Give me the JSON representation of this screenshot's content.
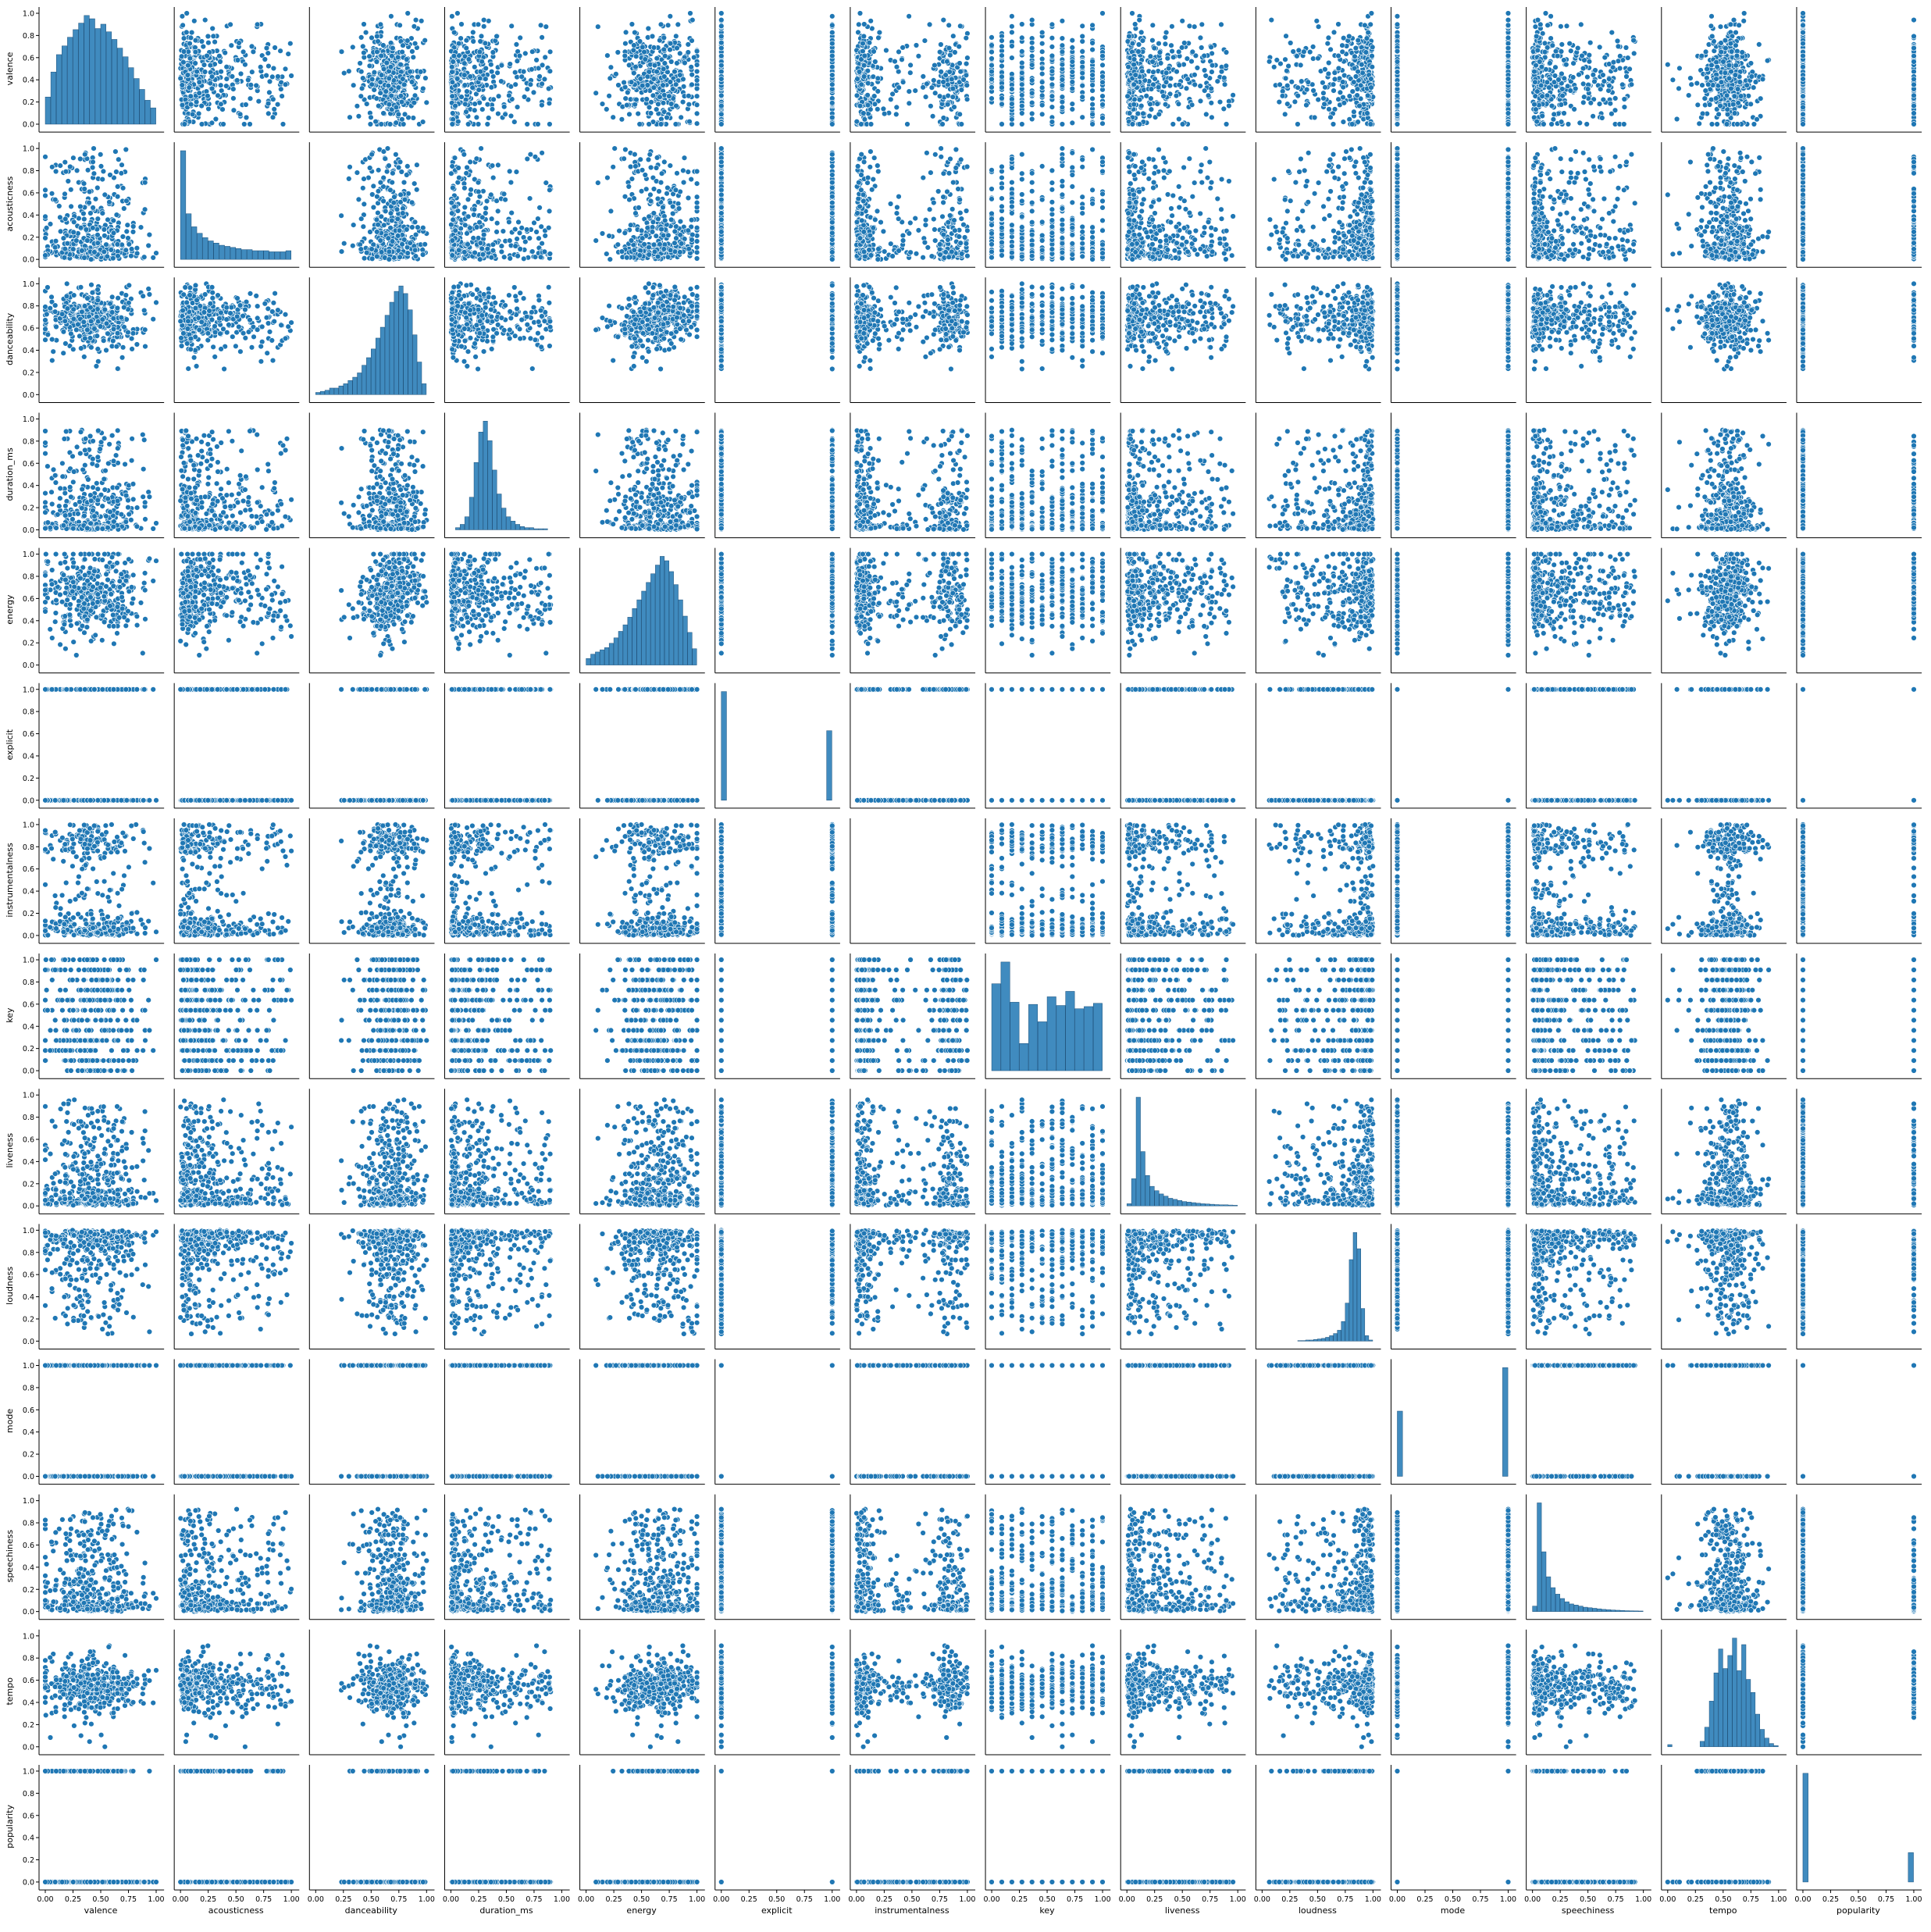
{
  "figure": {
    "background": "#ffffff",
    "point_color": "#1f77b4",
    "point_edge_color": "#ffffff",
    "histogram_color": "#1f77b4",
    "histogram_edge_color": "#1a4f7a"
  },
  "chart_data": {
    "type": "pairplot",
    "variables": [
      "valence",
      "acousticness",
      "danceability",
      "duration_ms",
      "energy",
      "explicit",
      "instrumentalness",
      "key",
      "liveness",
      "loudness",
      "mode",
      "speechiness",
      "tempo",
      "popularity"
    ],
    "axis_range": [
      0,
      1
    ],
    "tick_values": [
      0.0,
      0.2,
      0.4,
      0.6,
      0.8,
      1.0
    ],
    "tick_labels_y": [
      "0.0",
      "0.2",
      "0.4",
      "0.6",
      "0.8",
      "1.0"
    ],
    "tick_values_x": [
      0.0,
      0.25,
      0.5,
      0.75,
      1.0
    ],
    "tick_labels_x": [
      "0.00",
      "0.25",
      "0.50",
      "0.75",
      "1.00"
    ],
    "grid": false,
    "legend": "none",
    "variable_profiles": {
      "valence": {
        "kind": "continuous",
        "center": 0.42,
        "spread": 0.23,
        "min": 0.0,
        "max": 1.0
      },
      "acousticness": {
        "kind": "skewed",
        "center": 0.15,
        "spread": 0.25,
        "min": 0.0,
        "max": 1.0
      },
      "danceability": {
        "kind": "continuous",
        "center": 0.68,
        "spread": 0.14,
        "min": 0.0,
        "max": 0.98
      },
      "duration_ms": {
        "kind": "skewed",
        "center": 0.25,
        "spread": 0.08,
        "min": 0.0,
        "max": 1.0
      },
      "energy": {
        "kind": "continuous",
        "center": 0.64,
        "spread": 0.2,
        "min": 0.0,
        "max": 1.0
      },
      "explicit": {
        "kind": "binary",
        "share_of_ones": 0.39
      },
      "instrumentalness": {
        "kind": "bimodal",
        "center": 0.05,
        "spread": 0.3,
        "min": 0.0,
        "max": 1.0
      },
      "key": {
        "kind": "discrete",
        "levels": [
          0.0,
          0.091,
          0.182,
          0.273,
          0.364,
          0.455,
          0.545,
          0.636,
          0.727,
          0.818,
          0.909,
          1.0
        ]
      },
      "liveness": {
        "kind": "skewed",
        "center": 0.13,
        "spread": 0.15,
        "min": 0.0,
        "max": 1.0
      },
      "loudness": {
        "kind": "left-skewed",
        "center": 0.87,
        "spread": 0.05,
        "min": 0.0,
        "max": 1.0
      },
      "mode": {
        "kind": "binary",
        "share_of_ones": 0.62
      },
      "speechiness": {
        "kind": "skewed",
        "center": 0.06,
        "spread": 0.12,
        "min": 0.0,
        "max": 1.0
      },
      "tempo": {
        "kind": "multimodal",
        "center": 0.55,
        "spread": 0.12,
        "min": 0.0,
        "max": 1.0
      },
      "popularity": {
        "kind": "binary",
        "share_of_ones": 0.2
      }
    },
    "diagonal_histograms": {
      "valence": [
        0.25,
        0.48,
        0.64,
        0.72,
        0.8,
        0.87,
        0.93,
        1.0,
        0.97,
        0.88,
        0.92,
        0.85,
        0.78,
        0.7,
        0.62,
        0.52,
        0.42,
        0.32,
        0.22,
        0.15
      ],
      "acousticness": [
        1.0,
        0.42,
        0.3,
        0.24,
        0.2,
        0.17,
        0.15,
        0.13,
        0.12,
        0.11,
        0.1,
        0.09,
        0.09,
        0.08,
        0.08,
        0.08,
        0.07,
        0.07,
        0.07,
        0.08
      ],
      "danceability": [
        0.02,
        0.03,
        0.04,
        0.06,
        0.06,
        0.08,
        0.1,
        0.13,
        0.16,
        0.2,
        0.27,
        0.34,
        0.42,
        0.52,
        0.62,
        0.73,
        0.85,
        0.95,
        1.0,
        0.93,
        0.78,
        0.55,
        0.3,
        0.1
      ],
      "duration_ms": [
        0.0,
        0.02,
        0.05,
        0.12,
        0.3,
        0.62,
        0.9,
        1.0,
        0.82,
        0.55,
        0.33,
        0.2,
        0.12,
        0.08,
        0.05,
        0.03,
        0.02,
        0.02,
        0.01,
        0.01,
        0.01,
        0.0,
        0.0,
        0.0
      ],
      "energy": [
        0.06,
        0.1,
        0.12,
        0.14,
        0.16,
        0.2,
        0.25,
        0.31,
        0.37,
        0.44,
        0.52,
        0.6,
        0.68,
        0.76,
        0.84,
        0.92,
        1.0,
        0.96,
        0.86,
        0.74,
        0.6,
        0.45,
        0.3,
        0.15
      ],
      "explicit": [
        1.0,
        0,
        0,
        0,
        0,
        0,
        0,
        0,
        0,
        0,
        0,
        0,
        0,
        0,
        0,
        0,
        0,
        0,
        0,
        0.64
      ],
      "key": [
        0.8,
        1.0,
        0.63,
        0.25,
        0.61,
        0.45,
        0.68,
        0.6,
        0.73,
        0.57,
        0.59,
        0.62
      ],
      "liveness": [
        0.02,
        0.25,
        1.0,
        0.5,
        0.28,
        0.18,
        0.14,
        0.11,
        0.09,
        0.07,
        0.06,
        0.05,
        0.04,
        0.035,
        0.03,
        0.025,
        0.02,
        0.018,
        0.015,
        0.012,
        0.01,
        0.01,
        0.008,
        0.006
      ],
      "loudness": [
        0.0,
        0.0,
        0.0,
        0.0,
        0.0,
        0.0,
        0.0,
        0.0,
        0.0,
        0.005,
        0.005,
        0.01,
        0.01,
        0.015,
        0.02,
        0.025,
        0.035,
        0.05,
        0.07,
        0.1,
        0.18,
        0.35,
        0.75,
        1.0,
        0.85,
        0.3,
        0.05,
        0.01
      ],
      "mode": [
        0.6,
        0,
        0,
        0,
        0,
        0,
        0,
        0,
        0,
        0,
        0,
        0,
        0,
        0,
        0,
        0,
        0,
        0,
        0,
        1.0
      ],
      "speechiness": [
        0.05,
        1.0,
        0.55,
        0.32,
        0.22,
        0.16,
        0.12,
        0.09,
        0.07,
        0.06,
        0.05,
        0.04,
        0.035,
        0.03,
        0.025,
        0.02,
        0.017,
        0.014,
        0.012,
        0.01,
        0.008,
        0.007,
        0.006,
        0.005
      ],
      "tempo": [
        0.02,
        0.0,
        0.0,
        0.0,
        0.0,
        0.0,
        0.0,
        0.05,
        0.18,
        0.42,
        0.68,
        0.9,
        0.72,
        0.84,
        1.0,
        0.7,
        0.94,
        0.62,
        0.5,
        0.3,
        0.16,
        0.08,
        0.03,
        0.01
      ],
      "popularity": [
        1.0,
        0,
        0,
        0,
        0,
        0,
        0,
        0,
        0,
        0,
        0,
        0,
        0,
        0,
        0,
        0,
        0,
        0,
        0,
        0.27
      ]
    }
  }
}
